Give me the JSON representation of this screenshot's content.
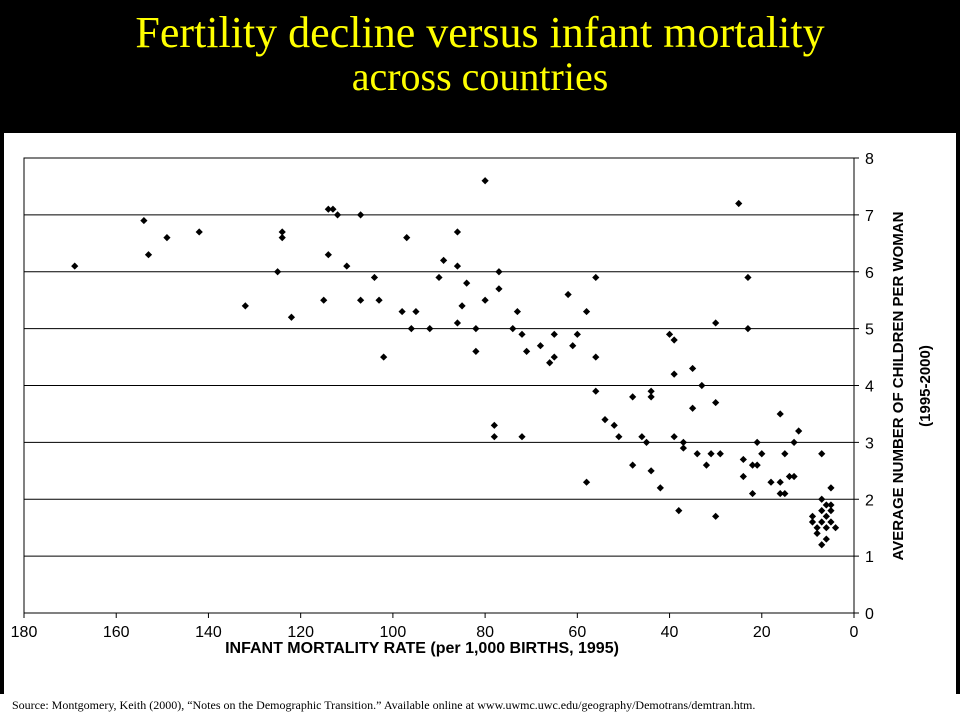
{
  "slide": {
    "title_line1": "Fertility decline versus infant mortality",
    "title_line2": "across countries",
    "source": "Source:   Montgomery, Keith (2000), “Notes on the Demographic Transition.”  Available online at www.uwmc.uwc.edu/geography/Demotrans/demtran.htm."
  },
  "colors": {
    "title": "#ffff00",
    "background": "#000000",
    "plot_bg": "#ffffff",
    "point": "#000000"
  },
  "chart_data": {
    "type": "scatter",
    "title": "",
    "xlabel": "INFANT MORTALITY RATE (per 1,000 BIRTHS, 1995)",
    "ylabel_line1": "AVERAGE NUMBER OF CHILDREN PER WOMAN",
    "ylabel_line2": "(1995-2000)",
    "xlim": [
      180,
      0
    ],
    "x_reversed": true,
    "ylim": [
      0,
      8
    ],
    "x_ticks": [
      "180",
      "160",
      "140",
      "120",
      "100",
      "80",
      "60",
      "40",
      "20",
      "0"
    ],
    "y_ticks": [
      "0",
      "1",
      "2",
      "3",
      "4",
      "5",
      "6",
      "7",
      "8"
    ],
    "y_axis_side": "right",
    "grid": "horizontal",
    "points": [
      [
        169,
        6.1
      ],
      [
        154,
        6.9
      ],
      [
        153,
        6.3
      ],
      [
        149,
        6.6
      ],
      [
        142,
        6.7
      ],
      [
        132,
        5.4
      ],
      [
        125,
        6.0
      ],
      [
        124,
        6.7
      ],
      [
        124,
        6.6
      ],
      [
        122,
        5.2
      ],
      [
        115,
        5.5
      ],
      [
        114,
        6.3
      ],
      [
        114,
        7.1
      ],
      [
        113,
        7.1
      ],
      [
        112,
        7.0
      ],
      [
        110,
        6.1
      ],
      [
        107,
        7.0
      ],
      [
        107,
        5.5
      ],
      [
        104,
        5.9
      ],
      [
        103,
        5.5
      ],
      [
        102,
        4.5
      ],
      [
        98,
        5.3
      ],
      [
        97,
        6.6
      ],
      [
        96,
        5.0
      ],
      [
        95,
        5.3
      ],
      [
        92,
        5.0
      ],
      [
        90,
        5.9
      ],
      [
        89,
        6.2
      ],
      [
        86,
        6.7
      ],
      [
        86,
        6.1
      ],
      [
        86,
        5.1
      ],
      [
        85,
        5.4
      ],
      [
        84,
        5.8
      ],
      [
        82,
        5.0
      ],
      [
        82,
        4.6
      ],
      [
        80,
        7.6
      ],
      [
        80,
        5.5
      ],
      [
        78,
        3.3
      ],
      [
        78,
        3.1
      ],
      [
        77,
        6.0
      ],
      [
        77,
        5.7
      ],
      [
        74,
        5.0
      ],
      [
        73,
        5.3
      ],
      [
        72,
        4.9
      ],
      [
        72,
        3.1
      ],
      [
        71,
        4.6
      ],
      [
        68,
        4.7
      ],
      [
        66,
        4.4
      ],
      [
        65,
        4.9
      ],
      [
        65,
        4.5
      ],
      [
        62,
        5.6
      ],
      [
        61,
        4.7
      ],
      [
        60,
        4.9
      ],
      [
        58,
        5.3
      ],
      [
        58,
        2.3
      ],
      [
        56,
        5.9
      ],
      [
        56,
        4.5
      ],
      [
        56,
        3.9
      ],
      [
        54,
        3.4
      ],
      [
        52,
        3.3
      ],
      [
        51,
        3.1
      ],
      [
        48,
        3.8
      ],
      [
        48,
        2.6
      ],
      [
        46,
        3.1
      ],
      [
        45,
        3.0
      ],
      [
        44,
        3.9
      ],
      [
        44,
        3.8
      ],
      [
        44,
        2.5
      ],
      [
        42,
        2.2
      ],
      [
        40,
        4.9
      ],
      [
        39,
        4.8
      ],
      [
        39,
        4.2
      ],
      [
        39,
        3.1
      ],
      [
        38,
        1.8
      ],
      [
        37,
        3.0
      ],
      [
        37,
        2.9
      ],
      [
        35,
        4.3
      ],
      [
        35,
        3.6
      ],
      [
        34,
        2.8
      ],
      [
        33,
        4.0
      ],
      [
        32,
        2.6
      ],
      [
        31,
        2.8
      ],
      [
        30,
        5.1
      ],
      [
        30,
        3.7
      ],
      [
        30,
        1.7
      ],
      [
        29,
        2.8
      ],
      [
        25,
        7.2
      ],
      [
        24,
        2.7
      ],
      [
        24,
        2.4
      ],
      [
        23,
        5.9
      ],
      [
        23,
        5.0
      ],
      [
        22,
        2.6
      ],
      [
        22,
        2.1
      ],
      [
        21,
        3.0
      ],
      [
        21,
        2.6
      ],
      [
        20,
        2.8
      ],
      [
        18,
        2.3
      ],
      [
        16,
        3.5
      ],
      [
        16,
        2.3
      ],
      [
        16,
        2.1
      ],
      [
        15,
        2.8
      ],
      [
        15,
        2.1
      ],
      [
        14,
        2.4
      ],
      [
        13,
        3.0
      ],
      [
        13,
        2.4
      ],
      [
        12,
        3.2
      ],
      [
        9,
        1.7
      ],
      [
        9,
        1.6
      ],
      [
        8,
        1.5
      ],
      [
        8,
        1.4
      ],
      [
        7,
        2.8
      ],
      [
        7,
        2.0
      ],
      [
        7,
        1.8
      ],
      [
        7,
        1.6
      ],
      [
        7,
        1.2
      ],
      [
        6,
        1.9
      ],
      [
        6,
        1.7
      ],
      [
        6,
        1.5
      ],
      [
        6,
        1.3
      ],
      [
        5,
        2.2
      ],
      [
        5,
        1.9
      ],
      [
        5,
        1.8
      ],
      [
        5,
        1.6
      ],
      [
        4,
        1.5
      ]
    ]
  }
}
